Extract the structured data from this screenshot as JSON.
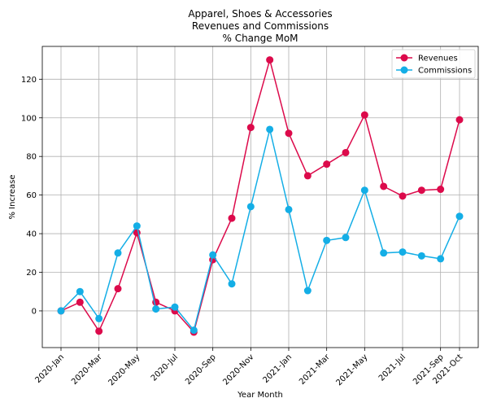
{
  "chart_data": {
    "type": "line",
    "title": [
      "Apparel, Shoes & Accessories",
      "Revenues and Commissions",
      "% Change MoM"
    ],
    "xlabel": "Year Month",
    "ylabel": "% Increase",
    "x_tick_labels": [
      "2020-Jan",
      "2020-Mar",
      "2020-May",
      "2020-Jul",
      "2020-Sep",
      "2020-Nov",
      "2021-Jan",
      "2021-Mar",
      "2021-May",
      "2021-Jul",
      "2021-Sep",
      "2021-Oct"
    ],
    "x": [
      "2020-Jan",
      "2020-Feb",
      "2020-Mar",
      "2020-Apr",
      "2020-May",
      "2020-Jun",
      "2020-Jul",
      "2020-Aug",
      "2020-Sep",
      "2020-Oct",
      "2020-Nov",
      "2020-Dec",
      "2021-Jan",
      "2021-Feb",
      "2021-Mar",
      "2021-Apr",
      "2021-May",
      "2021-Jun",
      "2021-Jul",
      "2021-Aug",
      "2021-Sep",
      "2021-Oct"
    ],
    "y_ticks": [
      0,
      20,
      40,
      60,
      80,
      100,
      120
    ],
    "ylim": [
      -19,
      137
    ],
    "grid": true,
    "legend_position": "top-right",
    "series": [
      {
        "name": "Revenues",
        "color": "#dc0a4b",
        "values": [
          0,
          4.5,
          -10.5,
          11.5,
          40.5,
          4.5,
          0,
          -11,
          26.5,
          48,
          95,
          130,
          92,
          70,
          76,
          82,
          101.5,
          64.5,
          59.5,
          62.5,
          63,
          99
        ]
      },
      {
        "name": "Commissions",
        "color": "#14aee6",
        "values": [
          0,
          10,
          -4,
          30,
          44,
          1,
          2,
          -10,
          29,
          14,
          54,
          94,
          52.5,
          10.5,
          36.5,
          38,
          62.5,
          30,
          30.5,
          28.5,
          27,
          49
        ]
      }
    ]
  }
}
